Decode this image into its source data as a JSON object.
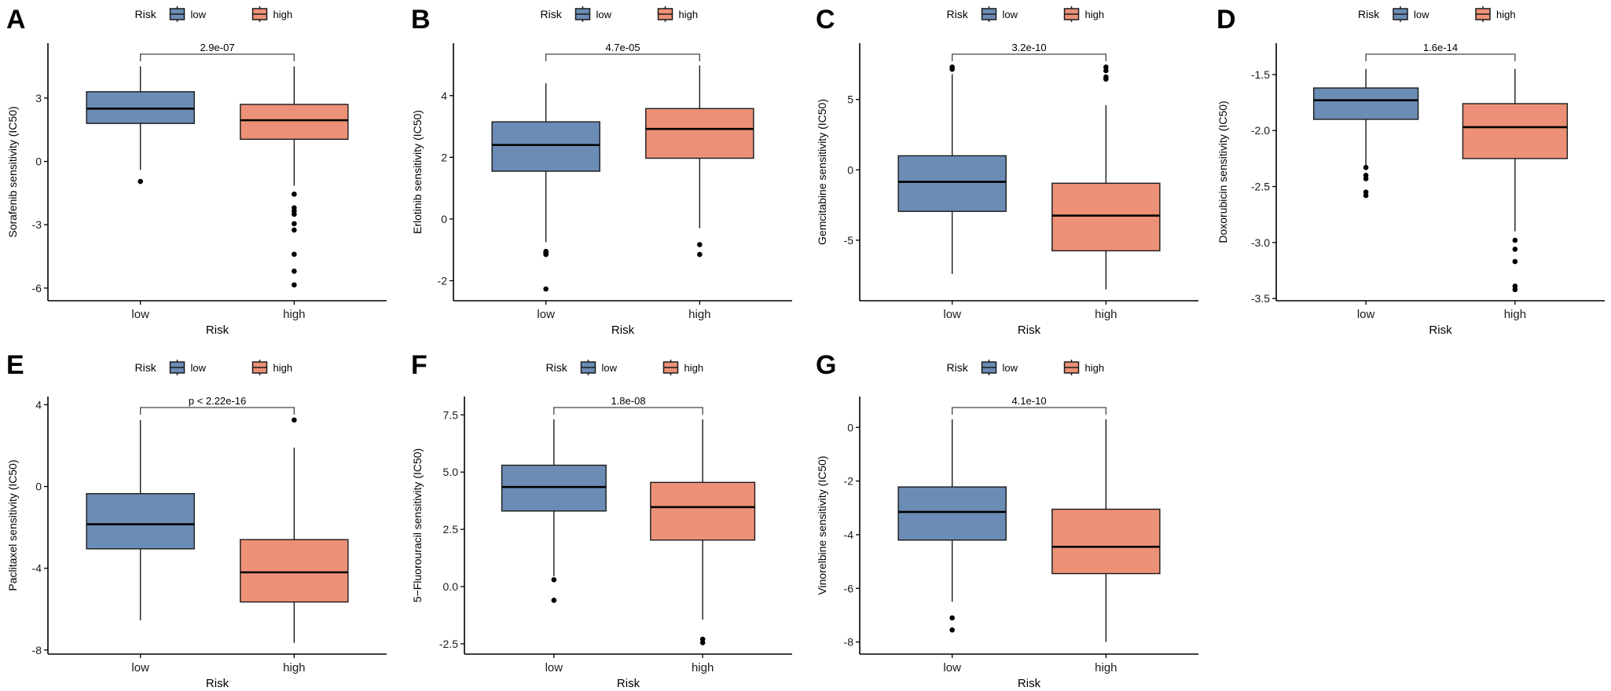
{
  "colors": {
    "low": "#6b8cb4",
    "high": "#ec9177",
    "outline": "#1a1a1a"
  },
  "chart_data": [
    {
      "type": "box",
      "panel_label": "A",
      "title": "",
      "xlabel": "Risk",
      "ylabel": "Sorafenib sensitivity (IC50)",
      "legend": {
        "title": "Risk",
        "entries": [
          "low",
          "high"
        ],
        "position": "top"
      },
      "categories": [
        "low",
        "high"
      ],
      "ylim": [
        -6.6,
        5.6
      ],
      "yticks": [
        3,
        0,
        -3,
        -6
      ],
      "ytick_labels": [
        "3",
        "0",
        "-3",
        "-6"
      ],
      "pvalue": "2.9e-07",
      "series": [
        {
          "name": "low",
          "whisker_low": -0.4,
          "q1": 1.8,
          "median": 2.5,
          "q3": 3.3,
          "whisker_high": 4.5,
          "outliers": [
            -0.95
          ]
        },
        {
          "name": "high",
          "whisker_low": -1.15,
          "q1": 1.05,
          "median": 1.95,
          "q3": 2.7,
          "whisker_high": 4.5,
          "outliers": [
            -1.55,
            -2.2,
            -2.35,
            -2.5,
            -2.95,
            -3.25,
            -4.4,
            -5.2,
            -5.85
          ]
        }
      ]
    },
    {
      "type": "box",
      "panel_label": "B",
      "title": "",
      "xlabel": "Risk",
      "ylabel": "Erlotinib sensitivity (IC50)",
      "legend": {
        "title": "Risk",
        "entries": [
          "low",
          "high"
        ],
        "position": "top"
      },
      "categories": [
        "low",
        "high"
      ],
      "ylim": [
        -2.65,
        5.7
      ],
      "yticks": [
        4,
        2,
        0,
        -2
      ],
      "ytick_labels": [
        "4",
        "2",
        "0",
        "-2"
      ],
      "pvalue": "4.7e-05",
      "series": [
        {
          "name": "low",
          "whisker_low": -0.75,
          "q1": 1.55,
          "median": 2.4,
          "q3": 3.15,
          "whisker_high": 4.4,
          "outliers": [
            -1.05,
            -1.1,
            -1.15,
            -2.27
          ]
        },
        {
          "name": "high",
          "whisker_low": -0.3,
          "q1": 1.97,
          "median": 2.92,
          "q3": 3.58,
          "whisker_high": 4.98,
          "outliers": [
            -0.83,
            -1.15
          ]
        }
      ]
    },
    {
      "type": "box",
      "panel_label": "C",
      "title": "",
      "xlabel": "Risk",
      "ylabel": "Gemcitabine sensitivity (IC50)",
      "legend": {
        "title": "Risk",
        "entries": [
          "low",
          "high"
        ],
        "position": "top"
      },
      "categories": [
        "low",
        "high"
      ],
      "ylim": [
        -9.3,
        9.0
      ],
      "yticks": [
        5,
        0,
        -5
      ],
      "ytick_labels": [
        "5",
        "0",
        "-5"
      ],
      "pvalue": "3.2e-10",
      "series": [
        {
          "name": "low",
          "whisker_low": -7.4,
          "q1": -2.95,
          "median": -0.85,
          "q3": 1.0,
          "whisker_high": 6.8,
          "outliers": [
            7.15,
            7.3
          ]
        },
        {
          "name": "high",
          "whisker_low": -8.5,
          "q1": -5.75,
          "median": -3.25,
          "q3": -0.95,
          "whisker_high": 4.6,
          "outliers": [
            6.45,
            6.6,
            7.05,
            7.3
          ]
        }
      ]
    },
    {
      "type": "box",
      "panel_label": "D",
      "title": "",
      "xlabel": "Risk",
      "ylabel": "Doxorubicin sensitivity (IC50)",
      "legend": {
        "title": "Risk",
        "entries": [
          "low",
          "high"
        ],
        "position": "top"
      },
      "categories": [
        "low",
        "high"
      ],
      "ylim": [
        -3.52,
        -1.22
      ],
      "yticks": [
        -1.5,
        -2.0,
        -2.5,
        -3.0,
        -3.5
      ],
      "ytick_labels": [
        "-1.5",
        "-2.0",
        "-2.5",
        "-3.0",
        "-3.5"
      ],
      "pvalue": "1.6e-14",
      "series": [
        {
          "name": "low",
          "whisker_low": -2.32,
          "q1": -1.9,
          "median": -1.73,
          "q3": -1.62,
          "whisker_high": -1.45,
          "outliers": [
            -2.33,
            -2.4,
            -2.43,
            -2.55,
            -2.58
          ]
        },
        {
          "name": "high",
          "whisker_low": -2.9,
          "q1": -2.25,
          "median": -1.97,
          "q3": -1.76,
          "whisker_high": -1.45,
          "outliers": [
            -2.98,
            -3.06,
            -3.17,
            -3.39,
            -3.42
          ]
        }
      ]
    },
    {
      "type": "box",
      "panel_label": "E",
      "title": "",
      "xlabel": "Risk",
      "ylabel": "Paclitaxel sensitivity (IC50)",
      "legend": {
        "title": "Risk",
        "entries": [
          "low",
          "high"
        ],
        "position": "top"
      },
      "categories": [
        "low",
        "high"
      ],
      "ylim": [
        -8.2,
        4.4
      ],
      "yticks": [
        4,
        0,
        -4,
        -8
      ],
      "ytick_labels": [
        "4",
        "0",
        "-4",
        "-8"
      ],
      "pvalue": "p < 2.22e-16",
      "series": [
        {
          "name": "low",
          "whisker_low": -6.55,
          "q1": -3.05,
          "median": -1.85,
          "q3": -0.35,
          "whisker_high": 3.25,
          "outliers": []
        },
        {
          "name": "high",
          "whisker_low": -7.65,
          "q1": -5.65,
          "median": -4.2,
          "q3": -2.6,
          "whisker_high": 1.9,
          "outliers": [
            3.25
          ]
        }
      ]
    },
    {
      "type": "box",
      "panel_label": "F",
      "title": "",
      "xlabel": "Risk",
      "ylabel": "5−Fluorouracil sensitivity (IC50)",
      "legend": {
        "title": "Risk",
        "entries": [
          "low",
          "high"
        ],
        "position": "top"
      },
      "categories": [
        "low",
        "high"
      ],
      "ylim": [
        -2.95,
        8.3
      ],
      "yticks": [
        7.5,
        5.0,
        2.5,
        0.0,
        -2.5
      ],
      "ytick_labels": [
        "7.5",
        "5.0",
        "2.5",
        "0.0",
        "-2.5"
      ],
      "pvalue": "1.8e-08",
      "series": [
        {
          "name": "low",
          "whisker_low": 0.45,
          "q1": 3.3,
          "median": 4.35,
          "q3": 5.3,
          "whisker_high": 7.3,
          "outliers": [
            0.3,
            -0.6
          ]
        },
        {
          "name": "high",
          "whisker_low": -1.45,
          "q1": 2.03,
          "median": 3.47,
          "q3": 4.55,
          "whisker_high": 7.3,
          "outliers": [
            -2.3,
            -2.45
          ]
        }
      ]
    },
    {
      "type": "box",
      "panel_label": "G",
      "title": "",
      "xlabel": "Risk",
      "ylabel": "Vinorelbine sensitivity (IC50)",
      "legend": {
        "title": "Risk",
        "entries": [
          "low",
          "high"
        ],
        "position": "top"
      },
      "categories": [
        "low",
        "high"
      ],
      "ylim": [
        -8.45,
        1.15
      ],
      "yticks": [
        0,
        -2,
        -4,
        -6,
        -8
      ],
      "ytick_labels": [
        "0",
        "-2",
        "-4",
        "-6",
        "-8"
      ],
      "pvalue": "4.1e-10",
      "series": [
        {
          "name": "low",
          "whisker_low": -6.5,
          "q1": -4.2,
          "median": -3.15,
          "q3": -2.22,
          "whisker_high": 0.3,
          "outliers": [
            -7.1,
            -7.55
          ]
        },
        {
          "name": "high",
          "whisker_low": -8.0,
          "q1": -5.45,
          "median": -4.45,
          "q3": -3.05,
          "whisker_high": 0.3,
          "outliers": []
        }
      ]
    }
  ]
}
